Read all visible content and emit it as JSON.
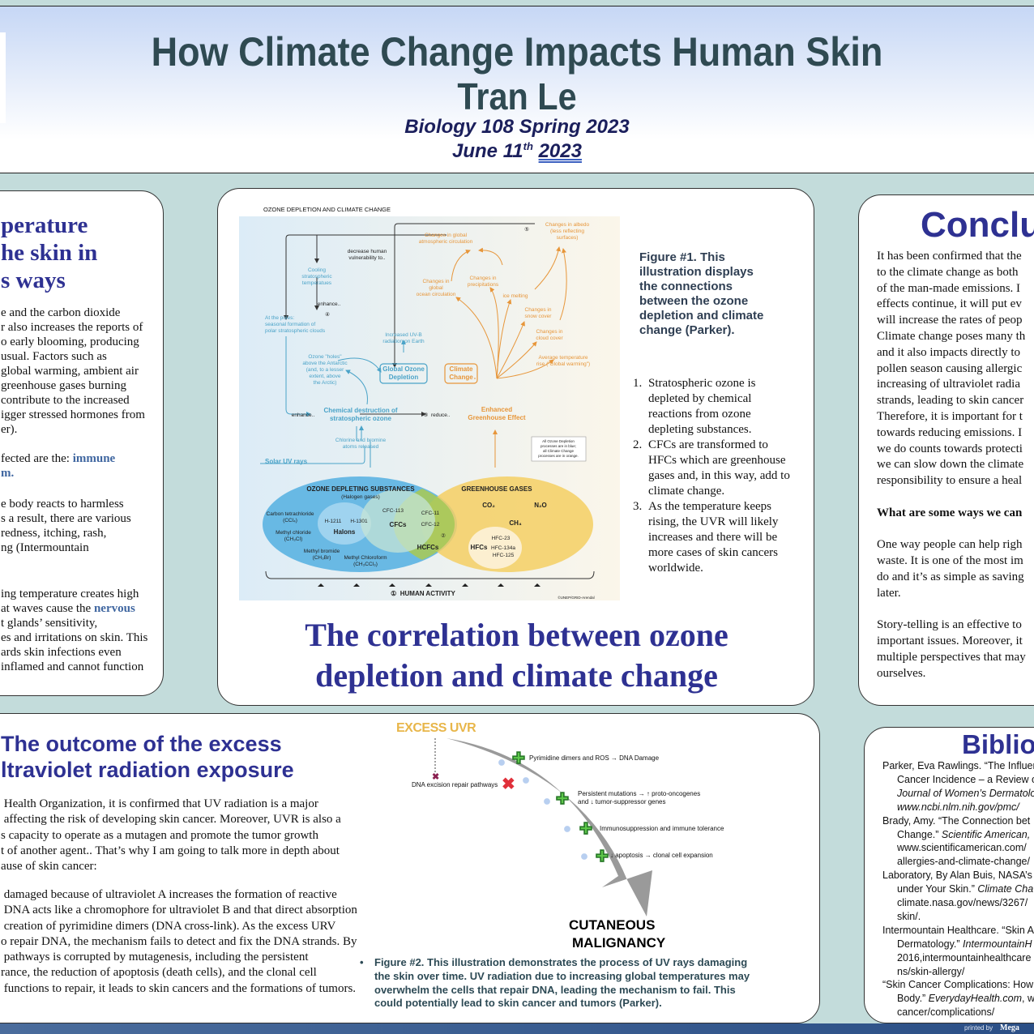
{
  "header": {
    "title": "How Climate Change Impacts Human Skin",
    "author": "Tran Le",
    "course": "Biology 108 Spring 2023",
    "date_prefix": "June 11",
    "date_sup": "th",
    "date_year": "2023"
  },
  "left_panel": {
    "heading": [
      "perature",
      "he skin in",
      "s ways"
    ],
    "p1": [
      "e and the carbon dioxide",
      "r also increases the reports of",
      "o early blooming, producing",
      " usual. Factors such as",
      "global warming, ambient air",
      " greenhouse gases burning",
      "contribute to the increased",
      "igger stressed hormones from",
      "er)."
    ],
    "p2_prefix": "fected are the: ",
    "p2_highlight": "immune",
    "p2_line2": "m.",
    "p3": [
      "e body reacts to harmless",
      "s a result, there are various",
      " redness, itching, rash,",
      "ng (Intermountain"
    ],
    "p4_l1": "ing temperature creates high",
    "p4_l2_prefix": "at waves cause the ",
    "p4_l2_highlight": "nervous",
    "p4_rest": [
      "t glands’ sensitivity,",
      "es and irritations on skin. This",
      "ards skin infections even",
      "inflamed and cannot function"
    ]
  },
  "figure1": {
    "title": "OZONE DEPLETION AND CLIMATE CHANGE",
    "labels": {
      "atm_circ": "Changes in global\natmospheric circulation",
      "albedo": "Changes in albedo\n(less reflecting\nsurfaces)",
      "n5": "⑤",
      "decrease": "decrease human\nvulnerability to..",
      "cooling": "Cooling\nstratospheric\ntemperatues",
      "enhance1": "enhance..",
      "n4": "④",
      "poles": "At the poles:\nseasonal formation of\npolar stratospheric clouds",
      "ocean": "Changes in\nglobal\nocean circulation",
      "precip": "Changes in\nprecipitations",
      "ice": "ice melting",
      "snow": "Changes in\nsnow cover",
      "cloud": "Changes in\ncloud cover",
      "avg_temp": "Average temperature\nrise (\"Global warming\")",
      "uvb": "Increased UV-B\nradiation on Earth",
      "holes": "Ozone \"holes\"\nabove the Antarctic\n(and, to a lesser\nextent, above\nthe Arctic)",
      "god": "Global Ozone\nDepletion",
      "cc": "Climate\nChange",
      "chem": "Chemical destruction of\nstratospheric ozone",
      "enhance2": "enhance..",
      "reduce": "③  reduce..",
      "ege": "Enhanced\nGreenhouse Effect",
      "chlorine": "Chlorine and bromine\natoms released",
      "solar": "Solar UV rays",
      "note": "All Ozone Depletion\nprocesses are in blue;\nall Climate Change\nprocesses are in orange.",
      "ods": "OZONE DEPLETING SUBSTANCES",
      "halogen": "(Halogen gases)",
      "ghg": "GREENHOUSE GASES",
      "ccl4": "Carbon tetrachloride\n(CCl₄)",
      "ch3cl": "Methyl chloride\n(CH₃Cl)",
      "ch3br": "Methyl bromide\n(CH₃Br)",
      "ch3ccl3": "Methyl Chloroform\n(CH₃CCl₃)",
      "h1211": "H-1211",
      "h1301": "H-1301",
      "halons": "Halons",
      "cfc113": "CFC-113",
      "cfcs": "CFCs",
      "cfc11": "CFC-11",
      "cfc12": "CFC-12",
      "n2": "②",
      "hcfcs": "HCFCs",
      "co2": "CO₂",
      "n2o": "N₂O",
      "ch4": "CH₄",
      "hfcs": "HFCs",
      "hfc23": "HFC-23",
      "hfc134a": "HFC-134a",
      "hfc125": "HFC-125",
      "human": "①  HUMAN ACTIVITY",
      "credit": "©UNEP/GRID-Arendal"
    },
    "caption": [
      "Figure #1. This",
      "illustration displays",
      "the connections",
      "between the ozone",
      "depletion and climate",
      "change (Parker)."
    ],
    "list": [
      [
        "Stratospheric ozone is",
        "depleted by chemical",
        "reactions from ozone",
        "depleting substances."
      ],
      [
        "CFCs are transformed to",
        "HFCs which are greenhouse",
        "gases and, in this way, add to",
        "climate change."
      ],
      [
        "As the temperature keeps",
        "rising, the UVR will likely",
        "increases and there will be",
        "more cases of skin cancers",
        "worldwide."
      ]
    ],
    "section_title": [
      "The correlation between ozone",
      "depletion and climate change"
    ],
    "colors": {
      "ozone": "#4aa3c8",
      "climate": "#e7963a",
      "title": "#2e3192"
    }
  },
  "conclusion": {
    "heading": "Conclu",
    "p1": [
      "It has been confirmed that the",
      "to the climate change as both",
      "of the man-made emissions. I",
      "effects continue, it will put ev",
      "will increase the rates of peop",
      "Climate change poses many th",
      "and it also impacts directly to",
      "pollen season causing allergic",
      "increasing of ultraviolet radia",
      "strands, leading to skin cancer",
      "Therefore, it is important for t",
      "towards reducing emissions. I",
      "we do counts towards protecti",
      "we can slow down the climate",
      "responsibility to ensure a heal"
    ],
    "question": "What are some ways we can",
    "p2": [
      "One way people can help righ",
      "waste. It is one of the most im",
      "do and it’s as simple as saving",
      "later."
    ],
    "p3": [
      "Story-telling is an effective to",
      "important issues. Moreover, it",
      "multiple perspectives that may",
      "ourselves."
    ]
  },
  "uv_section": {
    "title": [
      "The outcome of the excess",
      "ltraviolet radiation exposure"
    ],
    "p1": [
      " Health Organization, it is confirmed that UV radiation is a major",
      " affecting the risk of developing skin cancer. Moreover, UVR is also a",
      "s capacity to operate as a mutagen and promote the tumor growth",
      "t of another agent.. That’s why I am going to talk more in depth about",
      "ause of skin cancer:"
    ],
    "p2": [
      " damaged because of ultraviolet A increases the formation of reactive",
      " DNA acts like a chromophore for ultraviolet B and that direct absorption",
      " creation of pyrimidine dimers (DNA cross-link). As the excess URV",
      "o repair DNA, the mechanism fails to detect and fix the DNA strands. By",
      " pathways is corrupted by mutagenesis, including the persistent",
      "rance, the reduction of apoptosis (death cells), and the clonal cell",
      " functions to repair, it leads to skin cancers and the formations of tumors."
    ]
  },
  "figure2": {
    "top": "EXCESS UVR",
    "repair": "DNA excision repair pathways",
    "steps": [
      "Pyrimidine dimers and ROS → DNA Damage",
      "Persistent mutations → ↑ proto-oncogenes",
      "and ↓ tumor-suppressor genes",
      "Immunosuppression and immune tolerance",
      "↓ apoptosis → clonal cell expansion"
    ],
    "outcome": [
      "CUTANEOUS",
      "MALIGNANCY"
    ],
    "caption": [
      "Figure #2. This illustration demonstrates the process of UV rays damaging",
      "the skin over time. UV radiation due to increasing global temperatures may",
      "overwhelm the cells that repair DNA, leading the mechanism to fail. This",
      "could potentially lead to skin cancer and tumors (Parker)."
    ],
    "colors": {
      "top": "#e8b64a",
      "plus": "#5ec94a",
      "x": "#e0303a",
      "arrow": "#9a9a9a"
    }
  },
  "bibliography": {
    "heading": "Biblio",
    "entries": [
      {
        "lines": [
          "Parker, Eva Rawlings. “The Influen",
          "Cancer Incidence – a Review o"
        ],
        "italic": [
          "Journal of Women’s Dermatolo",
          "www.ncbi.nlm.nih.gov/pmc/"
        ]
      },
      {
        "lines": [
          "Brady, Amy. “The Connection bet"
        ],
        "mixed": [
          "Change.” ",
          "Scientific American,"
        ],
        "rest": [
          "www.scientificamerican.com/",
          "allergies-and-climate-change/"
        ]
      },
      {
        "lines": [
          "Laboratory, By Alan Buis, NASA’s J"
        ],
        "mixed": [
          "under Your Skin.” ",
          "Climate Cha"
        ],
        "rest": [
          "climate.nasa.gov/news/3267/",
          "skin/."
        ]
      },
      {
        "lines": [
          "Intermountain Healthcare. “Skin A"
        ],
        "mixed": [
          "Dermatology.” ",
          "IntermountainH"
        ],
        "rest": [
          "2016,intermountainhealthcare",
          "ns/skin-allergy/"
        ]
      },
      {
        "lines": [
          "“Skin Cancer Complications: How"
        ],
        "mixed": [
          "Body.” ",
          "EverydayHealth.com",
          ", w"
        ],
        "rest": [
          "cancer/complications/"
        ]
      }
    ]
  },
  "footer": {
    "printed_by": "printed by",
    "brand": "Mega"
  }
}
